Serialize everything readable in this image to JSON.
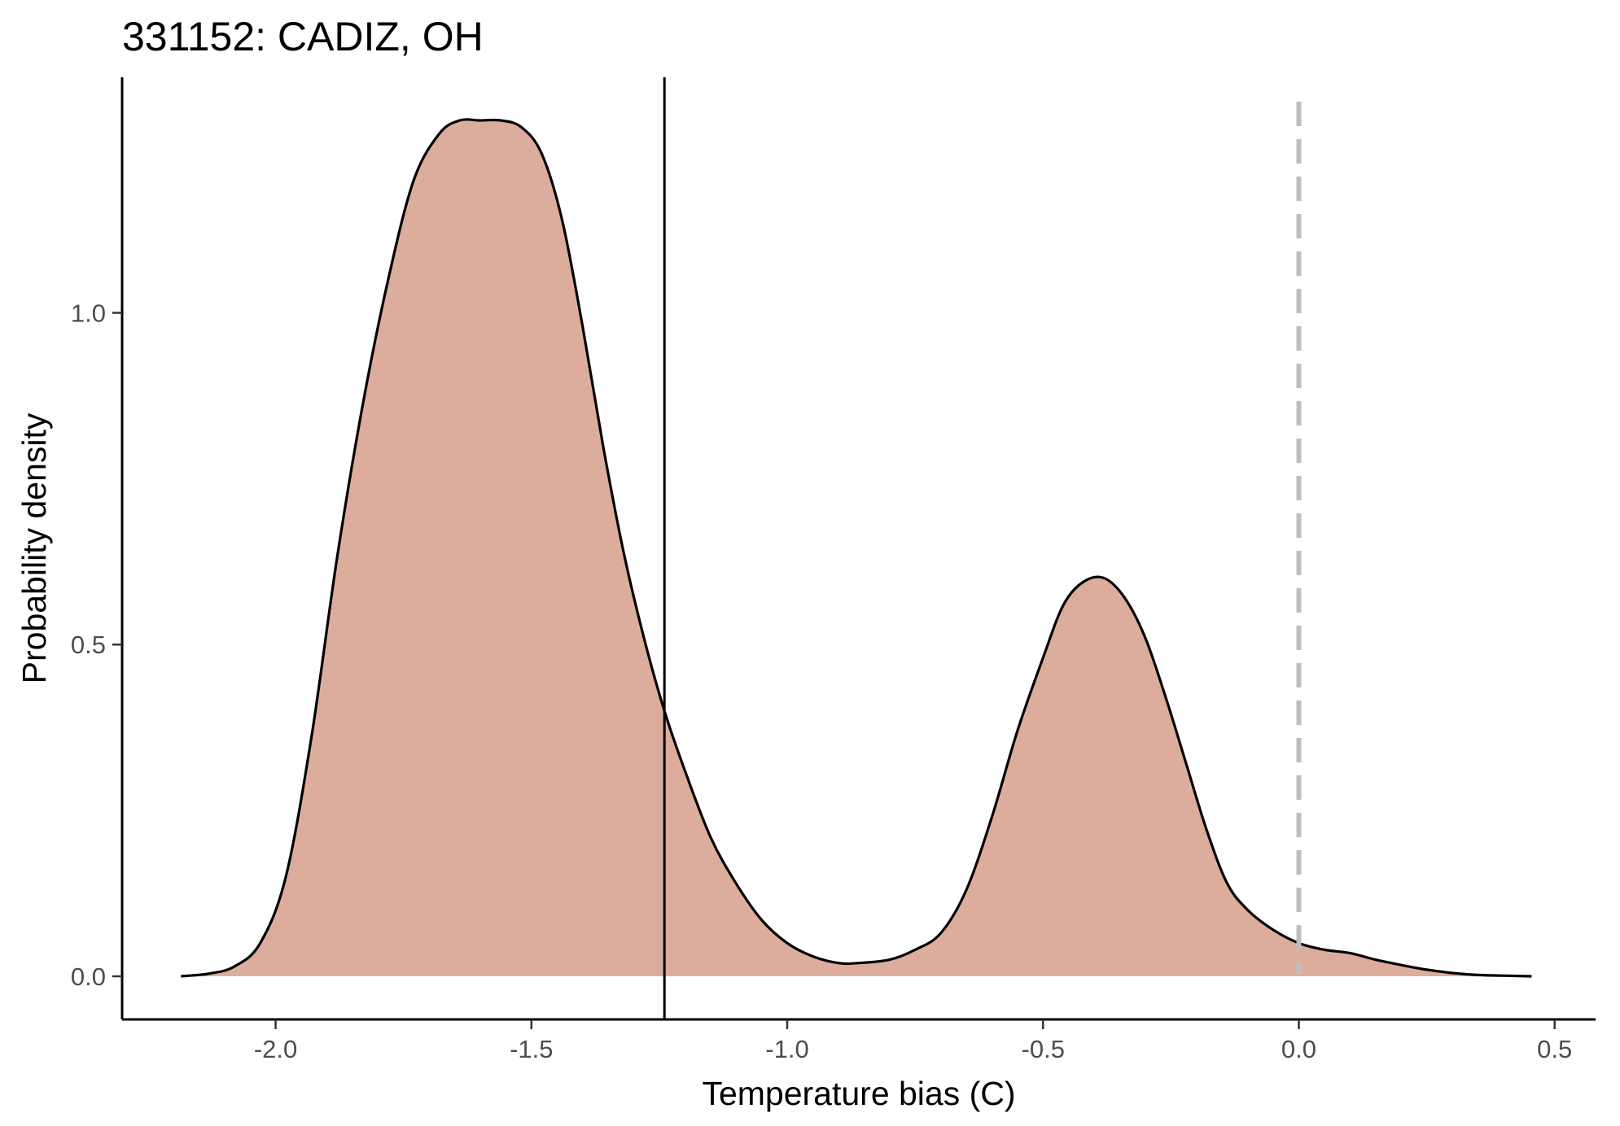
{
  "chart_data": {
    "type": "area",
    "title": "331152: CADIZ, OH",
    "xlabel": "Temperature bias (C)",
    "ylabel": "Probability density",
    "xlim": [
      -2.3,
      0.58
    ],
    "ylim": [
      -0.065,
      1.355
    ],
    "x_ticks": [
      -2.0,
      -1.5,
      -1.0,
      -0.5,
      0.0,
      0.5
    ],
    "x_tick_labels": [
      "-2.0",
      "-1.5",
      "-1.0",
      "-0.5",
      "0.0",
      "0.5"
    ],
    "y_ticks": [
      0.0,
      0.5,
      1.0
    ],
    "y_tick_labels": [
      "0.0",
      "0.5",
      "1.0"
    ],
    "grid": false,
    "legend": "none",
    "series": [
      {
        "x": [
          -2.185,
          -2.13,
          -2.08,
          -2.03,
          -1.98,
          -1.93,
          -1.88,
          -1.83,
          -1.78,
          -1.73,
          -1.68,
          -1.64,
          -1.6,
          -1.56,
          -1.52,
          -1.48,
          -1.44,
          -1.4,
          -1.36,
          -1.32,
          -1.28,
          -1.24,
          -1.2,
          -1.15,
          -1.1,
          -1.05,
          -1.0,
          -0.95,
          -0.9,
          -0.86,
          -0.8,
          -0.75,
          -0.7,
          -0.65,
          -0.6,
          -0.55,
          -0.5,
          -0.46,
          -0.42,
          -0.38,
          -0.34,
          -0.3,
          -0.26,
          -0.22,
          -0.18,
          -0.14,
          -0.1,
          -0.05,
          0.0,
          0.05,
          0.1,
          0.15,
          0.2,
          0.25,
          0.3,
          0.35,
          0.4,
          0.455
        ],
        "y": [
          0.0,
          0.004,
          0.015,
          0.05,
          0.15,
          0.36,
          0.63,
          0.86,
          1.05,
          1.2,
          1.27,
          1.29,
          1.29,
          1.29,
          1.28,
          1.24,
          1.14,
          0.98,
          0.8,
          0.64,
          0.51,
          0.4,
          0.31,
          0.21,
          0.14,
          0.085,
          0.05,
          0.03,
          0.02,
          0.02,
          0.025,
          0.04,
          0.065,
          0.13,
          0.24,
          0.37,
          0.48,
          0.56,
          0.595,
          0.6,
          0.57,
          0.51,
          0.42,
          0.32,
          0.22,
          0.14,
          0.1,
          0.07,
          0.05,
          0.04,
          0.035,
          0.025,
          0.017,
          0.01,
          0.005,
          0.002,
          0.001,
          0.0
        ],
        "fill": "#dcad9c",
        "stroke": "#000000"
      }
    ],
    "vlines": [
      {
        "x": -1.24,
        "style": "solid",
        "color": "#000000"
      },
      {
        "x": 0.0,
        "style": "dashed",
        "color": "#bebebe"
      }
    ]
  }
}
